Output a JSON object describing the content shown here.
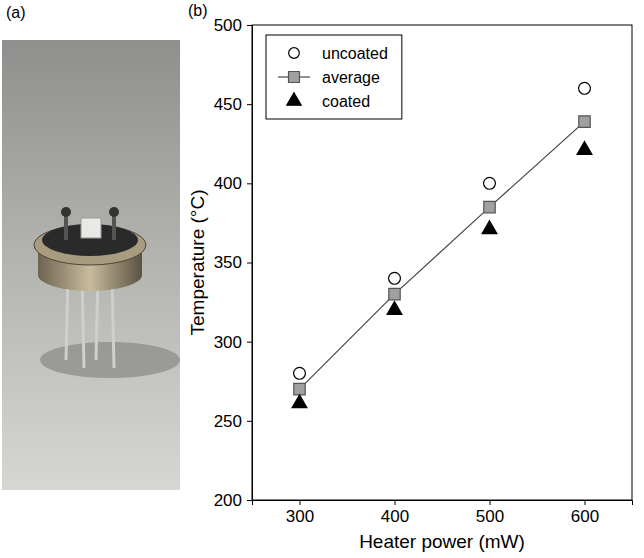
{
  "photo": {
    "label": "(a)"
  },
  "chart_data": {
    "type": "line",
    "title": "(b)",
    "x_label": "Heater power (mW)",
    "y_label": "Temperature (°C)",
    "x": [
      300,
      400,
      500,
      600
    ],
    "series": [
      {
        "name": "uncoated",
        "type": "scatter",
        "color": "#000000",
        "marker": "open-circle",
        "values": [
          280,
          340,
          400,
          460
        ]
      },
      {
        "name": "average",
        "type": "line",
        "color": "#a0a0a0",
        "marker": "square",
        "line_style": "solid",
        "values": [
          270,
          330,
          385,
          439
        ]
      },
      {
        "name": "coated",
        "type": "scatter",
        "color": "#000000",
        "marker": "triangle",
        "values": [
          261,
          320,
          371,
          421
        ]
      }
    ],
    "xlim": [
      250,
      650
    ],
    "xticks": [
      300,
      400,
      500,
      600
    ],
    "ylim": [
      200,
      500
    ],
    "yticks": [
      200,
      250,
      300,
      350,
      400,
      450,
      500
    ],
    "grid": false,
    "legend": "upper left"
  }
}
